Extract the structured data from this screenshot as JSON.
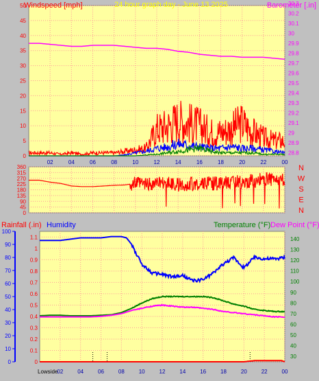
{
  "chart_data": [
    {
      "type": "line",
      "title": "24 hour graph day - June 13 2025",
      "left_label": "Windspeed [mph]",
      "right_label": "Barometer [.in]",
      "x_ticks": [
        "02",
        "04",
        "06",
        "08",
        "10",
        "12",
        "14",
        "16",
        "18",
        "20",
        "22",
        "00"
      ],
      "y_left_ticks": [
        "0",
        "5",
        "10",
        "15",
        "20",
        "25",
        "30",
        "35",
        "40",
        "45",
        "50"
      ],
      "y_left_range": [
        0,
        50
      ],
      "y_right_ticks": [
        "28.8",
        "28.9",
        "29",
        "29.1",
        "29.2",
        "29.3",
        "29.4",
        "29.5",
        "29.6",
        "29.7",
        "29.8",
        "29.9",
        "30",
        "30.1",
        "30.2",
        "30.3"
      ],
      "y_right_range": [
        28.77,
        30.28
      ],
      "grid": true,
      "series": [
        {
          "name": "Windspeed",
          "color": "#ff0000",
          "axis": "left",
          "x": [
            0,
            1,
            2,
            3,
            4,
            5,
            6,
            7,
            8,
            9,
            10,
            11,
            12,
            13,
            14,
            15,
            16,
            17,
            18,
            19,
            20,
            21,
            22,
            23,
            24
          ],
          "y": [
            1,
            1,
            1,
            0.5,
            1,
            0.5,
            1,
            1,
            1,
            1.5,
            2,
            2.5,
            9,
            10,
            12,
            11,
            10,
            8,
            8,
            9,
            11,
            8,
            6,
            5,
            5
          ]
        },
        {
          "name": "Gust",
          "color": "#0000ff",
          "axis": "left",
          "x": [
            0,
            4,
            8,
            9,
            10,
            11,
            12,
            13,
            14,
            15,
            16,
            17,
            18,
            19,
            20,
            21,
            22,
            23,
            24
          ],
          "y": [
            0,
            0,
            0,
            0.3,
            1,
            1.5,
            2.5,
            3,
            4,
            3.5,
            3,
            2.5,
            2.5,
            3,
            2.5,
            2.5,
            2,
            1.5,
            1
          ]
        },
        {
          "name": "Average",
          "color": "#008000",
          "axis": "left",
          "x": [
            0,
            10,
            11,
            12,
            13,
            14,
            15,
            16,
            17,
            18,
            19,
            20,
            21,
            22,
            23,
            24
          ],
          "y": [
            0,
            0,
            0.3,
            0.5,
            1,
            1.5,
            2,
            2.5,
            1.5,
            1,
            1,
            1,
            1,
            0.5,
            0.5,
            0.5
          ]
        },
        {
          "name": "Barometer",
          "color": "#ff00ff",
          "axis": "right",
          "x": [
            0,
            1,
            2,
            3,
            4,
            5,
            6,
            7,
            8,
            9,
            10,
            11,
            12,
            13,
            14,
            15,
            16,
            17,
            18,
            19,
            20,
            21,
            22,
            23,
            24
          ],
          "y": [
            29.9,
            29.9,
            29.89,
            29.88,
            29.87,
            29.87,
            29.88,
            29.88,
            29.88,
            29.87,
            29.86,
            29.85,
            29.85,
            29.84,
            29.82,
            29.81,
            29.79,
            29.78,
            29.77,
            29.77,
            29.76,
            29.76,
            29.76,
            29.75,
            29.74
          ]
        }
      ]
    },
    {
      "type": "line",
      "title": "Wind direction",
      "y_left_ticks": [
        "360",
        "315",
        "270",
        "225",
        "180",
        "135",
        "90",
        "45",
        "0"
      ],
      "y_left_range": [
        0,
        360
      ],
      "y_right_labels": [
        "N",
        "W",
        "S",
        "E",
        "N"
      ],
      "grid": true,
      "series": [
        {
          "name": "Direction",
          "color": "#ff0000",
          "x": [
            0,
            1,
            2,
            3,
            4,
            5,
            6,
            7,
            8,
            9,
            10,
            11,
            12,
            13,
            14,
            15,
            16,
            17,
            18,
            19,
            20,
            21,
            22,
            23,
            24
          ],
          "y": [
            255,
            255,
            240,
            230,
            210,
            205,
            205,
            210,
            215,
            218,
            230,
            225,
            230,
            230,
            220,
            225,
            225,
            230,
            230,
            235,
            245,
            250,
            260,
            260,
            250
          ]
        }
      ]
    },
    {
      "type": "line",
      "left_label_1": "Rainfall (.in)",
      "left_label_2": "Humidity",
      "right_label_1": "Temperature (°F)",
      "right_label_2": "Dew Point (°F)",
      "x_ticks": [
        "Lowside",
        "02",
        "04",
        "06",
        "08",
        "10",
        "12",
        "14",
        "16",
        "18",
        "20",
        "22",
        "00"
      ],
      "y_humidity_ticks": [
        "0",
        "10",
        "20",
        "30",
        "40",
        "50",
        "60",
        "70",
        "80",
        "90",
        "100"
      ],
      "y_humidity_range": [
        0,
        100
      ],
      "y_rain_ticks": [
        "0",
        "0.1",
        "0.2",
        "0.3",
        "0.4",
        "0.5",
        "0.6",
        "0.7",
        "0.8",
        "0.9",
        "1",
        "1.1"
      ],
      "y_rain_range": [
        0,
        1.15
      ],
      "y_temp_ticks": [
        "30",
        "40",
        "50",
        "60",
        "70",
        "80",
        "90",
        "100",
        "110",
        "120",
        "130",
        "140"
      ],
      "y_temp_range": [
        25,
        147
      ],
      "grid": true,
      "series": [
        {
          "name": "Humidity",
          "color": "#0000ff",
          "axis": "humidity",
          "x": [
            0,
            1,
            2,
            3,
            4,
            5,
            6,
            7,
            8,
            8.5,
            9,
            9.5,
            10,
            11,
            12,
            13,
            14,
            15,
            16,
            17,
            18,
            19,
            20,
            21,
            22,
            23,
            24
          ],
          "y": [
            93,
            93,
            93,
            94,
            95,
            95,
            95,
            96,
            96,
            95,
            90,
            82,
            75,
            68,
            67,
            65,
            66,
            62,
            63,
            68,
            75,
            80,
            72,
            80,
            79,
            79,
            80
          ]
        },
        {
          "name": "Temperature",
          "color": "#008000",
          "axis": "temp",
          "x": [
            0,
            1,
            2,
            3,
            4,
            5,
            6,
            7,
            8,
            9,
            10,
            11,
            12,
            13,
            14,
            15,
            16,
            17,
            18,
            19,
            20,
            21,
            22,
            23,
            24
          ],
          "y": [
            68,
            68.5,
            68.5,
            68,
            68,
            68,
            68.5,
            69,
            71,
            75,
            80,
            84,
            86,
            86,
            86,
            86,
            86,
            85,
            82,
            79,
            77,
            74,
            73,
            72,
            72
          ]
        },
        {
          "name": "Dew Point",
          "color": "#ff00ff",
          "axis": "temp",
          "x": [
            0,
            1,
            2,
            3,
            4,
            5,
            6,
            7,
            8,
            9,
            10,
            11,
            12,
            13,
            14,
            15,
            16,
            17,
            18,
            19,
            20,
            21,
            22,
            23,
            24
          ],
          "y": [
            67,
            67,
            67,
            67,
            67,
            67,
            67.5,
            68.5,
            70,
            73,
            75,
            77,
            78,
            77,
            76,
            76,
            75,
            74,
            72,
            71,
            70,
            69,
            68,
            67,
            67
          ]
        },
        {
          "name": "Rainfall",
          "color": "#ff0000",
          "axis": "rain",
          "x": [
            0,
            18,
            19,
            20,
            21,
            22,
            23,
            23.7,
            24
          ],
          "y": [
            0,
            0,
            0,
            0,
            0.01,
            0.01,
            0.01,
            0.01,
            0
          ]
        }
      ]
    }
  ]
}
